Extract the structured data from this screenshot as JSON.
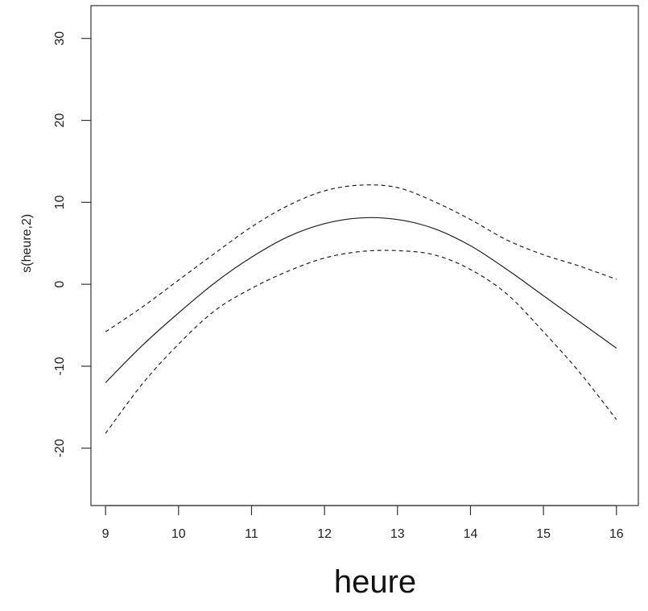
{
  "chart_data": {
    "type": "line",
    "title": "",
    "xlabel": "heure",
    "ylabel": "s(heure,2)",
    "xlim": [
      8.8,
      16.3
    ],
    "ylim": [
      -27,
      34
    ],
    "xticks": [
      9,
      10,
      11,
      12,
      13,
      14,
      15,
      16
    ],
    "yticks": [
      -20,
      -10,
      0,
      10,
      20,
      30
    ],
    "grid": false,
    "legend": "none",
    "series": [
      {
        "style": "solid",
        "x": [
          9,
          9.5,
          10,
          10.5,
          11,
          11.5,
          12,
          12.5,
          13,
          13.5,
          14,
          14.5,
          15,
          15.5,
          16
        ],
        "y": [
          -12,
          -7.5,
          -3.5,
          0.2,
          3.3,
          5.8,
          7.4,
          8.1,
          7.9,
          6.8,
          4.7,
          1.8,
          -1.4,
          -4.6,
          -7.8
        ]
      },
      {
        "style": "dashed",
        "x": [
          9,
          9.5,
          10,
          10.5,
          11,
          11.5,
          12,
          12.5,
          13,
          13.5,
          14,
          14.5,
          15,
          15.5,
          16
        ],
        "y": [
          -5.8,
          -2.8,
          0.5,
          3.8,
          7.0,
          9.6,
          11.4,
          12.1,
          11.8,
          10.1,
          7.9,
          5.4,
          3.6,
          2.2,
          0.6
        ]
      },
      {
        "style": "dashed",
        "x": [
          9,
          9.5,
          10,
          10.5,
          11,
          11.5,
          12,
          12.5,
          13,
          13.5,
          14,
          14.5,
          15,
          15.5,
          16
        ],
        "y": [
          -18.2,
          -12.2,
          -7.3,
          -3.2,
          -0.5,
          1.6,
          3.2,
          4.0,
          4.1,
          3.6,
          1.8,
          -1.2,
          -5.8,
          -10.8,
          -16.5
        ]
      }
    ]
  }
}
